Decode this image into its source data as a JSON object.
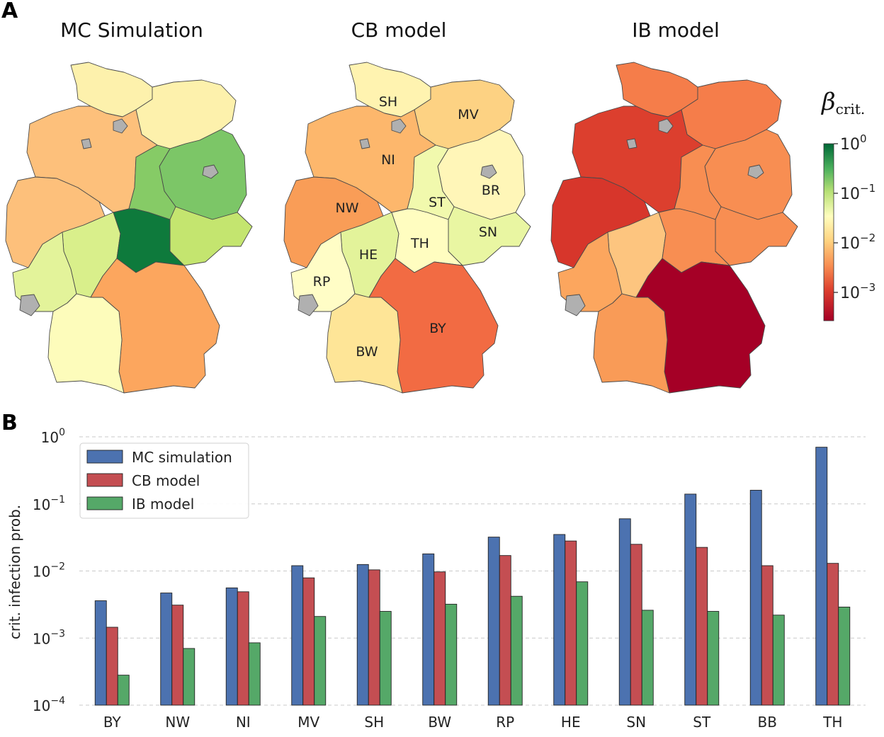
{
  "panel_a": {
    "letter": "A",
    "titles": [
      "MC Simulation",
      "CB model",
      "IB model"
    ],
    "state_labels": [
      "SH",
      "MV",
      "NI",
      "BR",
      "ST",
      "NW",
      "SN",
      "HE",
      "TH",
      "RP",
      "BY",
      "BW"
    ],
    "colorbar": {
      "title": "β",
      "title_sub": "crit.",
      "ticks": [
        {
          "base": "10",
          "exp": "0"
        },
        {
          "base": "10",
          "exp": "−1"
        },
        {
          "base": "10",
          "exp": "−2"
        },
        {
          "base": "10",
          "exp": "−3"
        }
      ]
    },
    "colors": {
      "mc": {
        "SH": "#fdf1ac",
        "MV": "#fdf1ac",
        "NI": "#fdc07b",
        "BB": "#7cc667",
        "ST": "#86cb66",
        "NW": "#fdc07b",
        "SN": "#c4e56f",
        "HE": "#d9ef8b",
        "TH": "#0e7a3c",
        "RP": "#e3f39a",
        "BY": "#fca65e",
        "BW": "#fdfcbb",
        "HH": "#b0b0b0",
        "HB": "#b0b0b0",
        "BE": "#b0b0b0",
        "SL": "#b0b0b0"
      },
      "cb": {
        "SH": "#fff3b0",
        "MV": "#fdd283",
        "NI": "#fdb76c",
        "BB": "#fff6b8",
        "ST": "#f1f9ad",
        "NW": "#f99d57",
        "SN": "#e9f6a2",
        "HE": "#e3f39a",
        "TH": "#fffdc0",
        "RP": "#fffdc6",
        "BY": "#f26b43",
        "BW": "#fee597",
        "HH": "#b0b0b0",
        "HB": "#b0b0b0",
        "BE": "#b0b0b0",
        "SL": "#b0b0b0"
      },
      "ib": {
        "SH": "#f57d4a",
        "MV": "#f57d4a",
        "NI": "#dc3f2e",
        "BB": "#f88e52",
        "ST": "#f88e52",
        "NW": "#d7362b",
        "SN": "#f88e52",
        "HE": "#fdc57f",
        "TH": "#f88e52",
        "RP": "#fca65e",
        "BY": "#a50026",
        "BW": "#f99b57",
        "HH": "#b0b0b0",
        "HB": "#b0b0b0",
        "BE": "#b0b0b0",
        "SL": "#b0b0b0"
      }
    }
  },
  "panel_b": {
    "letter": "B"
  },
  "chart_data": {
    "type": "bar",
    "title": "",
    "xlabel": "",
    "ylabel": "crit. infection prob.",
    "yscale": "log",
    "ylim": [
      0.0001,
      1
    ],
    "yticks": [
      {
        "base": "10",
        "exp": "0"
      },
      {
        "base": "10",
        "exp": "−1"
      },
      {
        "base": "10",
        "exp": "−2"
      },
      {
        "base": "10",
        "exp": "−3"
      },
      {
        "base": "10",
        "exp": "−4"
      }
    ],
    "grid": true,
    "legend_position": "top-left",
    "categories": [
      "BY",
      "NW",
      "NI",
      "MV",
      "SH",
      "BW",
      "RP",
      "HE",
      "SN",
      "ST",
      "BB",
      "TH"
    ],
    "series": [
      {
        "name": "MC simulation",
        "color": "#4c72b0",
        "values": [
          0.0036,
          0.0047,
          0.0056,
          0.012,
          0.0125,
          0.018,
          0.032,
          0.035,
          0.06,
          0.14,
          0.16,
          0.7
        ]
      },
      {
        "name": "CB model",
        "color": "#c44e52",
        "values": [
          0.00145,
          0.0031,
          0.0049,
          0.0079,
          0.0104,
          0.0097,
          0.017,
          0.028,
          0.025,
          0.0225,
          0.012,
          0.013
        ]
      },
      {
        "name": "IB model",
        "color": "#55a868",
        "values": [
          0.00028,
          0.0007,
          0.00085,
          0.0021,
          0.0025,
          0.0032,
          0.0042,
          0.0069,
          0.0026,
          0.0025,
          0.0022,
          0.0029
        ]
      }
    ]
  }
}
